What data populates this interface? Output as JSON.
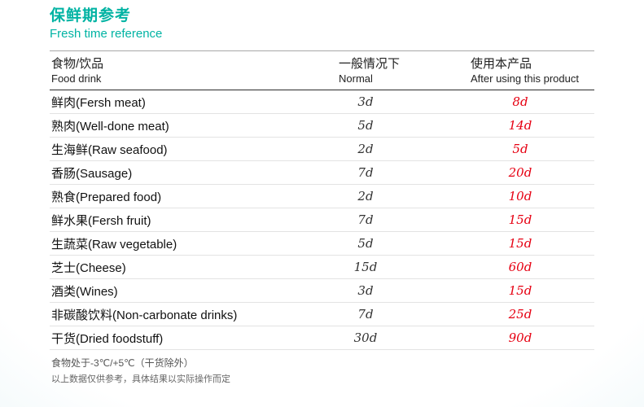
{
  "page": {
    "title_cn": "保鲜期参考",
    "title_en": "Fresh time reference"
  },
  "table": {
    "header": {
      "food_cn": "食物/饮品",
      "food_en": "Food drink",
      "normal_cn": "一般情况下",
      "normal_en": "Normal",
      "after_cn": "使用本产品",
      "after_en": "After using this product"
    },
    "rows": [
      {
        "food": "鲜肉(Fersh meat)",
        "normal": "3d",
        "after": "8d"
      },
      {
        "food": "熟肉(Well-done meat)",
        "normal": "5d",
        "after": "14d"
      },
      {
        "food": "生海鲜(Raw seafood)",
        "normal": "2d",
        "after": "5d"
      },
      {
        "food": "香肠(Sausage)",
        "normal": "7d",
        "after": "20d"
      },
      {
        "food": "熟食(Prepared food)",
        "normal": "2d",
        "after": "10d"
      },
      {
        "food": "鲜水果(Fersh fruit)",
        "normal": "7d",
        "after": "15d"
      },
      {
        "food": "生蔬菜(Raw vegetable)",
        "normal": "5d",
        "after": "15d"
      },
      {
        "food": "芝士(Cheese)",
        "normal": "15d",
        "after": "60d"
      },
      {
        "food": "酒类(Wines)",
        "normal": "3d",
        "after": "15d"
      },
      {
        "food": "非碳酸饮料(Non-carbonate drinks)",
        "normal": "7d",
        "after": "25d"
      },
      {
        "food": "干货(Dried foodstuff)",
        "normal": "30d",
        "after": "90d"
      }
    ]
  },
  "footnotes": {
    "line1": "食物处于-3℃/+5℃（干货除外）",
    "line2": "以上数据仅供参考，具体结果以实际操作而定"
  },
  "colors": {
    "accent_teal": "#00b3a3",
    "highlight_red": "#e60012"
  }
}
